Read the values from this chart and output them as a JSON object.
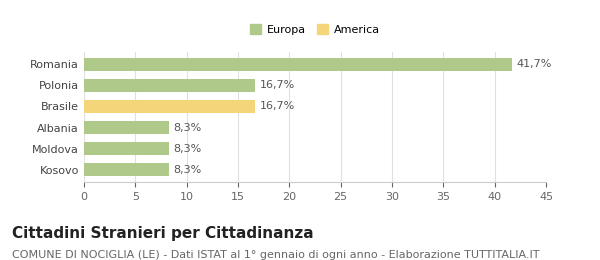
{
  "categories": [
    "Romania",
    "Polonia",
    "Brasile",
    "Albania",
    "Moldova",
    "Kosovo"
  ],
  "values": [
    41.7,
    16.7,
    16.7,
    8.3,
    8.3,
    8.3
  ],
  "bar_colors": [
    "#aec98a",
    "#aec98a",
    "#f5d57a",
    "#aec98a",
    "#aec98a",
    "#aec98a"
  ],
  "labels": [
    "41,7%",
    "16,7%",
    "16,7%",
    "8,3%",
    "8,3%",
    "8,3%"
  ],
  "xlim": [
    0,
    45
  ],
  "xticks": [
    0,
    5,
    10,
    15,
    20,
    25,
    30,
    35,
    40,
    45
  ],
  "legend": [
    {
      "label": "Europa",
      "color": "#aec98a"
    },
    {
      "label": "America",
      "color": "#f5d57a"
    }
  ],
  "title": "Cittadini Stranieri per Cittadinanza",
  "subtitle": "COMUNE DI NOCIGLIA (LE) - Dati ISTAT al 1° gennaio di ogni anno - Elaborazione TUTTITALIA.IT",
  "background_color": "#ffffff",
  "grid_color": "#e0e0e0",
  "title_fontsize": 11,
  "subtitle_fontsize": 8,
  "label_fontsize": 8,
  "tick_fontsize": 8
}
